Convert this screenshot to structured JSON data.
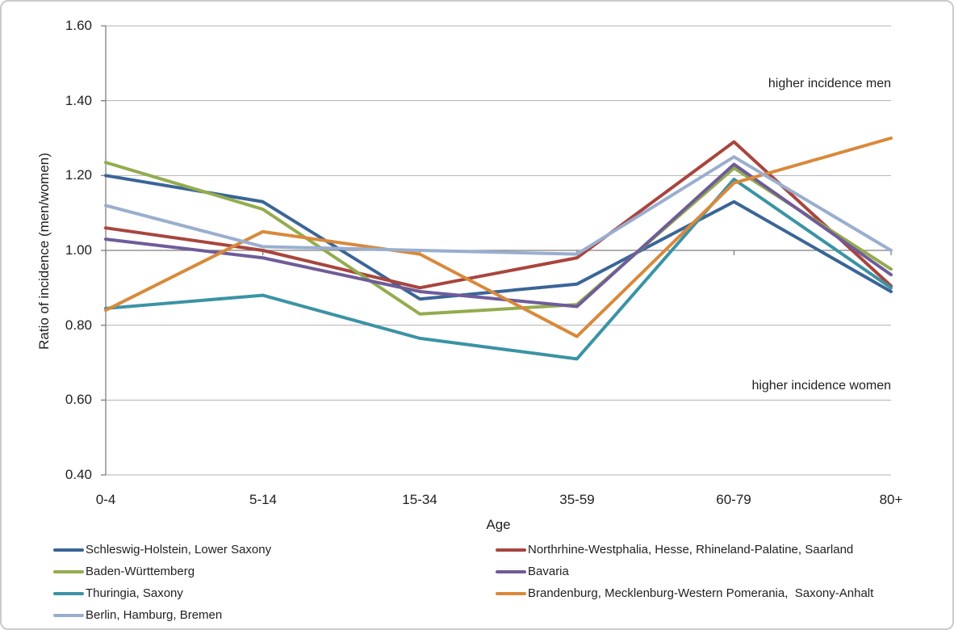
{
  "chart_data": {
    "type": "line",
    "title": "",
    "xlabel": "Age",
    "ylabel": "Ratio of incidence (men/women)",
    "categories": [
      "0-4",
      "5-14",
      "15-34",
      "35-59",
      "60-79",
      "80+"
    ],
    "yticks": [
      "1.60",
      "1.40",
      "1.20",
      "1.00",
      "0.80",
      "0.60",
      "0.40"
    ],
    "ylim": [
      0.4,
      1.6
    ],
    "grid": true,
    "legend_position": "bottom",
    "axis_cross_value": 1.0,
    "annotations": {
      "men": "higher incidence men",
      "women": "higher incidence women"
    },
    "series": [
      {
        "name": "Schleswig-Holstein, Lower Saxony",
        "color": "#3A6596",
        "values": [
          1.2,
          1.13,
          0.87,
          0.91,
          1.13,
          0.89
        ]
      },
      {
        "name": "Northrhine-Westphalia, Hesse, Rhineland-Palatine, Saarland",
        "color": "#A8453E",
        "values": [
          1.06,
          1.0,
          0.9,
          0.98,
          1.29,
          0.905
        ]
      },
      {
        "name": "Baden-Württemberg",
        "color": "#93AC4E",
        "values": [
          1.235,
          1.11,
          0.83,
          0.855,
          1.22,
          0.95
        ]
      },
      {
        "name": "Bavaria",
        "color": "#6F5C99",
        "values": [
          1.03,
          0.98,
          0.89,
          0.85,
          1.23,
          0.935
        ]
      },
      {
        "name": "Thuringia, Saxony",
        "color": "#3B93A5",
        "values": [
          0.845,
          0.88,
          0.765,
          0.71,
          1.19,
          0.9
        ]
      },
      {
        "name": "Brandenburg, Mecklenburg-Western Pomerania,  Saxony-Anhalt",
        "color": "#D9893B",
        "values": [
          0.84,
          1.05,
          0.99,
          0.77,
          1.18,
          1.3
        ]
      },
      {
        "name": "Berlin, Hamburg, Bremen",
        "color": "#9AAECF",
        "values": [
          1.12,
          1.01,
          1.0,
          0.99,
          1.25,
          1.0
        ]
      }
    ],
    "colors": {
      "gridline": "#B3B3B3",
      "axis": "#7F7F7F",
      "text": "#1F1F1F"
    }
  }
}
